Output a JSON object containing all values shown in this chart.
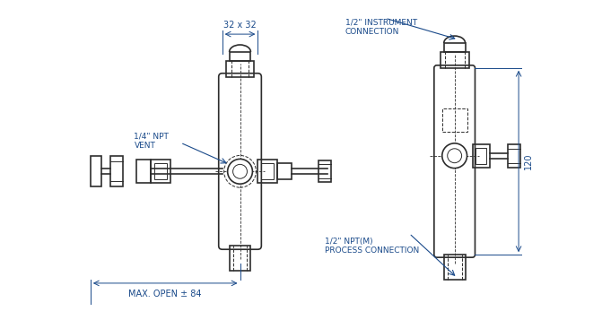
{
  "bg_color": "#ffffff",
  "line_color": "#2d2d2d",
  "dim_color": "#1a4a8a",
  "text_color": "#1a4a8a",
  "annotations": {
    "instrument_connection": "1/2\" INSTRUMENT\nCONNECTION",
    "npt_vent": "1/4\" NPT\nVENT",
    "process_connection": "1/2\" NPT(M)\nPROCESS CONNECTION",
    "max_open": "MAX. OPEN ± 84",
    "dim_32x32": "32 x 32",
    "dim_120": "120"
  }
}
